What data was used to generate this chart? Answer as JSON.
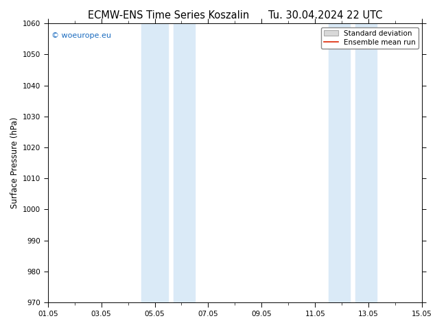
{
  "title": "ECMW-ENS Time Series Koszalin      Tu. 30.04.2024 22 UTC",
  "ylabel": "Surface Pressure (hPa)",
  "ylim": [
    970,
    1060
  ],
  "yticks": [
    970,
    980,
    990,
    1000,
    1010,
    1020,
    1030,
    1040,
    1050,
    1060
  ],
  "xtick_labels": [
    "01.05",
    "03.05",
    "05.05",
    "07.05",
    "09.05",
    "11.05",
    "13.05",
    "15.05"
  ],
  "xtick_positions": [
    0,
    2,
    4,
    6,
    8,
    10,
    12,
    14
  ],
  "x_min": 0,
  "x_max": 14,
  "shaded_bands": [
    {
      "x_start": 3.5,
      "x_end": 4.5
    },
    {
      "x_start": 4.7,
      "x_end": 5.5
    },
    {
      "x_start": 10.5,
      "x_end": 11.3
    },
    {
      "x_start": 11.5,
      "x_end": 12.3
    }
  ],
  "band_color": "#daeaf7",
  "watermark_text": "© woeurope.eu",
  "watermark_color": "#1a6bbf",
  "legend_std_label": "Standard deviation",
  "legend_mean_label": "Ensemble mean run",
  "legend_std_facecolor": "#d8d8d8",
  "legend_std_edgecolor": "#aaaaaa",
  "legend_mean_color": "#dd2200",
  "bg_color": "#ffffff",
  "axis_color": "#000000",
  "title_fontsize": 10.5,
  "tick_fontsize": 7.5,
  "ylabel_fontsize": 8.5,
  "watermark_fontsize": 8,
  "legend_fontsize": 7.5,
  "fig_width": 6.34,
  "fig_height": 4.9,
  "dpi": 100
}
